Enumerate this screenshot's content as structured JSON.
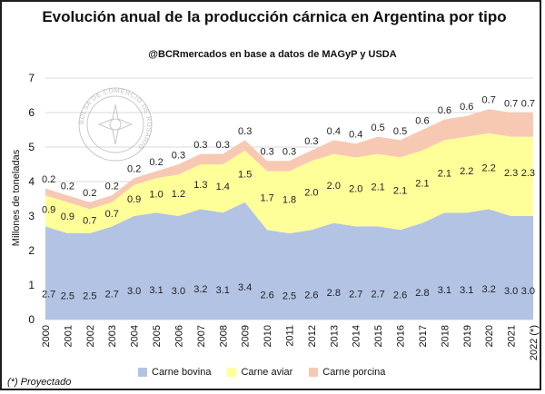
{
  "title": "Evolución anual de la producción cárnica en Argentina por tipo",
  "subtitle": "@BCRmercados  en base a datos de MAGyP y USDA",
  "footnote": "(*) Proyectado",
  "watermark_text": "BOLSA DE COMERCIO DE ROSARIO",
  "chart_data": {
    "type": "area",
    "stacked": true,
    "ylabel": "Millones de toneladas",
    "ylim": [
      0,
      7
    ],
    "yticks": [
      0,
      1,
      2,
      3,
      4,
      5,
      6,
      7
    ],
    "grid": true,
    "legend_position": "bottom",
    "x": [
      "2000",
      "2001",
      "2002",
      "2003",
      "2004",
      "2005",
      "2006",
      "2007",
      "2008",
      "2009",
      "2010",
      "2011",
      "2012",
      "2013",
      "2014",
      "2015",
      "2016",
      "2017",
      "2018",
      "2019",
      "2020",
      "2021",
      "2022 (*)"
    ],
    "series": [
      {
        "name": "Carne bovina",
        "color": "#b3c3e3",
        "values": [
          2.7,
          2.5,
          2.5,
          2.7,
          3.0,
          3.1,
          3.0,
          3.2,
          3.1,
          3.4,
          2.6,
          2.5,
          2.6,
          2.8,
          2.7,
          2.7,
          2.6,
          2.8,
          3.1,
          3.1,
          3.2,
          3.0,
          3.0
        ]
      },
      {
        "name": "Carne aviar",
        "color": "#ffff9a",
        "values": [
          0.9,
          0.9,
          0.7,
          0.7,
          0.9,
          1.0,
          1.2,
          1.3,
          1.4,
          1.5,
          1.7,
          1.8,
          2.0,
          2.0,
          2.0,
          2.1,
          2.1,
          2.1,
          2.1,
          2.2,
          2.2,
          2.3,
          2.3
        ]
      },
      {
        "name": "Carne porcina",
        "color": "#f7c9b3",
        "values": [
          0.2,
          0.2,
          0.2,
          0.2,
          0.2,
          0.2,
          0.3,
          0.3,
          0.3,
          0.3,
          0.3,
          0.3,
          0.3,
          0.4,
          0.4,
          0.5,
          0.5,
          0.6,
          0.6,
          0.6,
          0.7,
          0.7,
          0.7
        ]
      }
    ],
    "labels": {
      "Carne bovina": [
        "2.7",
        "2.5",
        "2.5",
        "2.7",
        "3.0",
        "3.1",
        "3.0",
        "3.2",
        "3.1",
        "3.4",
        "2.6",
        "2.5",
        "2.6",
        "2.8",
        "2.7",
        "2.7",
        "2.6",
        "2.8",
        "3.1",
        "3.1",
        "3.2",
        "3.0",
        "3.0"
      ],
      "Carne aviar": [
        "0.9",
        "0.9",
        "0.7",
        "0.7",
        "0.9",
        "1.0",
        "1.2",
        "1.3",
        "1.4",
        "1.5",
        "1.7",
        "1.8",
        "2.0",
        "2.0",
        "2.0",
        "2.1",
        "2.1",
        "2.1",
        "2.1",
        "2.2",
        "2.2",
        "2.3",
        "2.3"
      ],
      "Carne porcina": [
        "0.2",
        "0.2",
        "0.2",
        "0.2",
        "0.2",
        "0.2",
        "0.3",
        "0.3",
        "0.3",
        "0.3",
        "0.3",
        "0.3",
        "0.3",
        "0.4",
        "0.4",
        "0.5",
        "0.5",
        "0.6",
        "0.6",
        "0.6",
        "0.7",
        "0.7",
        "0.7"
      ]
    }
  }
}
